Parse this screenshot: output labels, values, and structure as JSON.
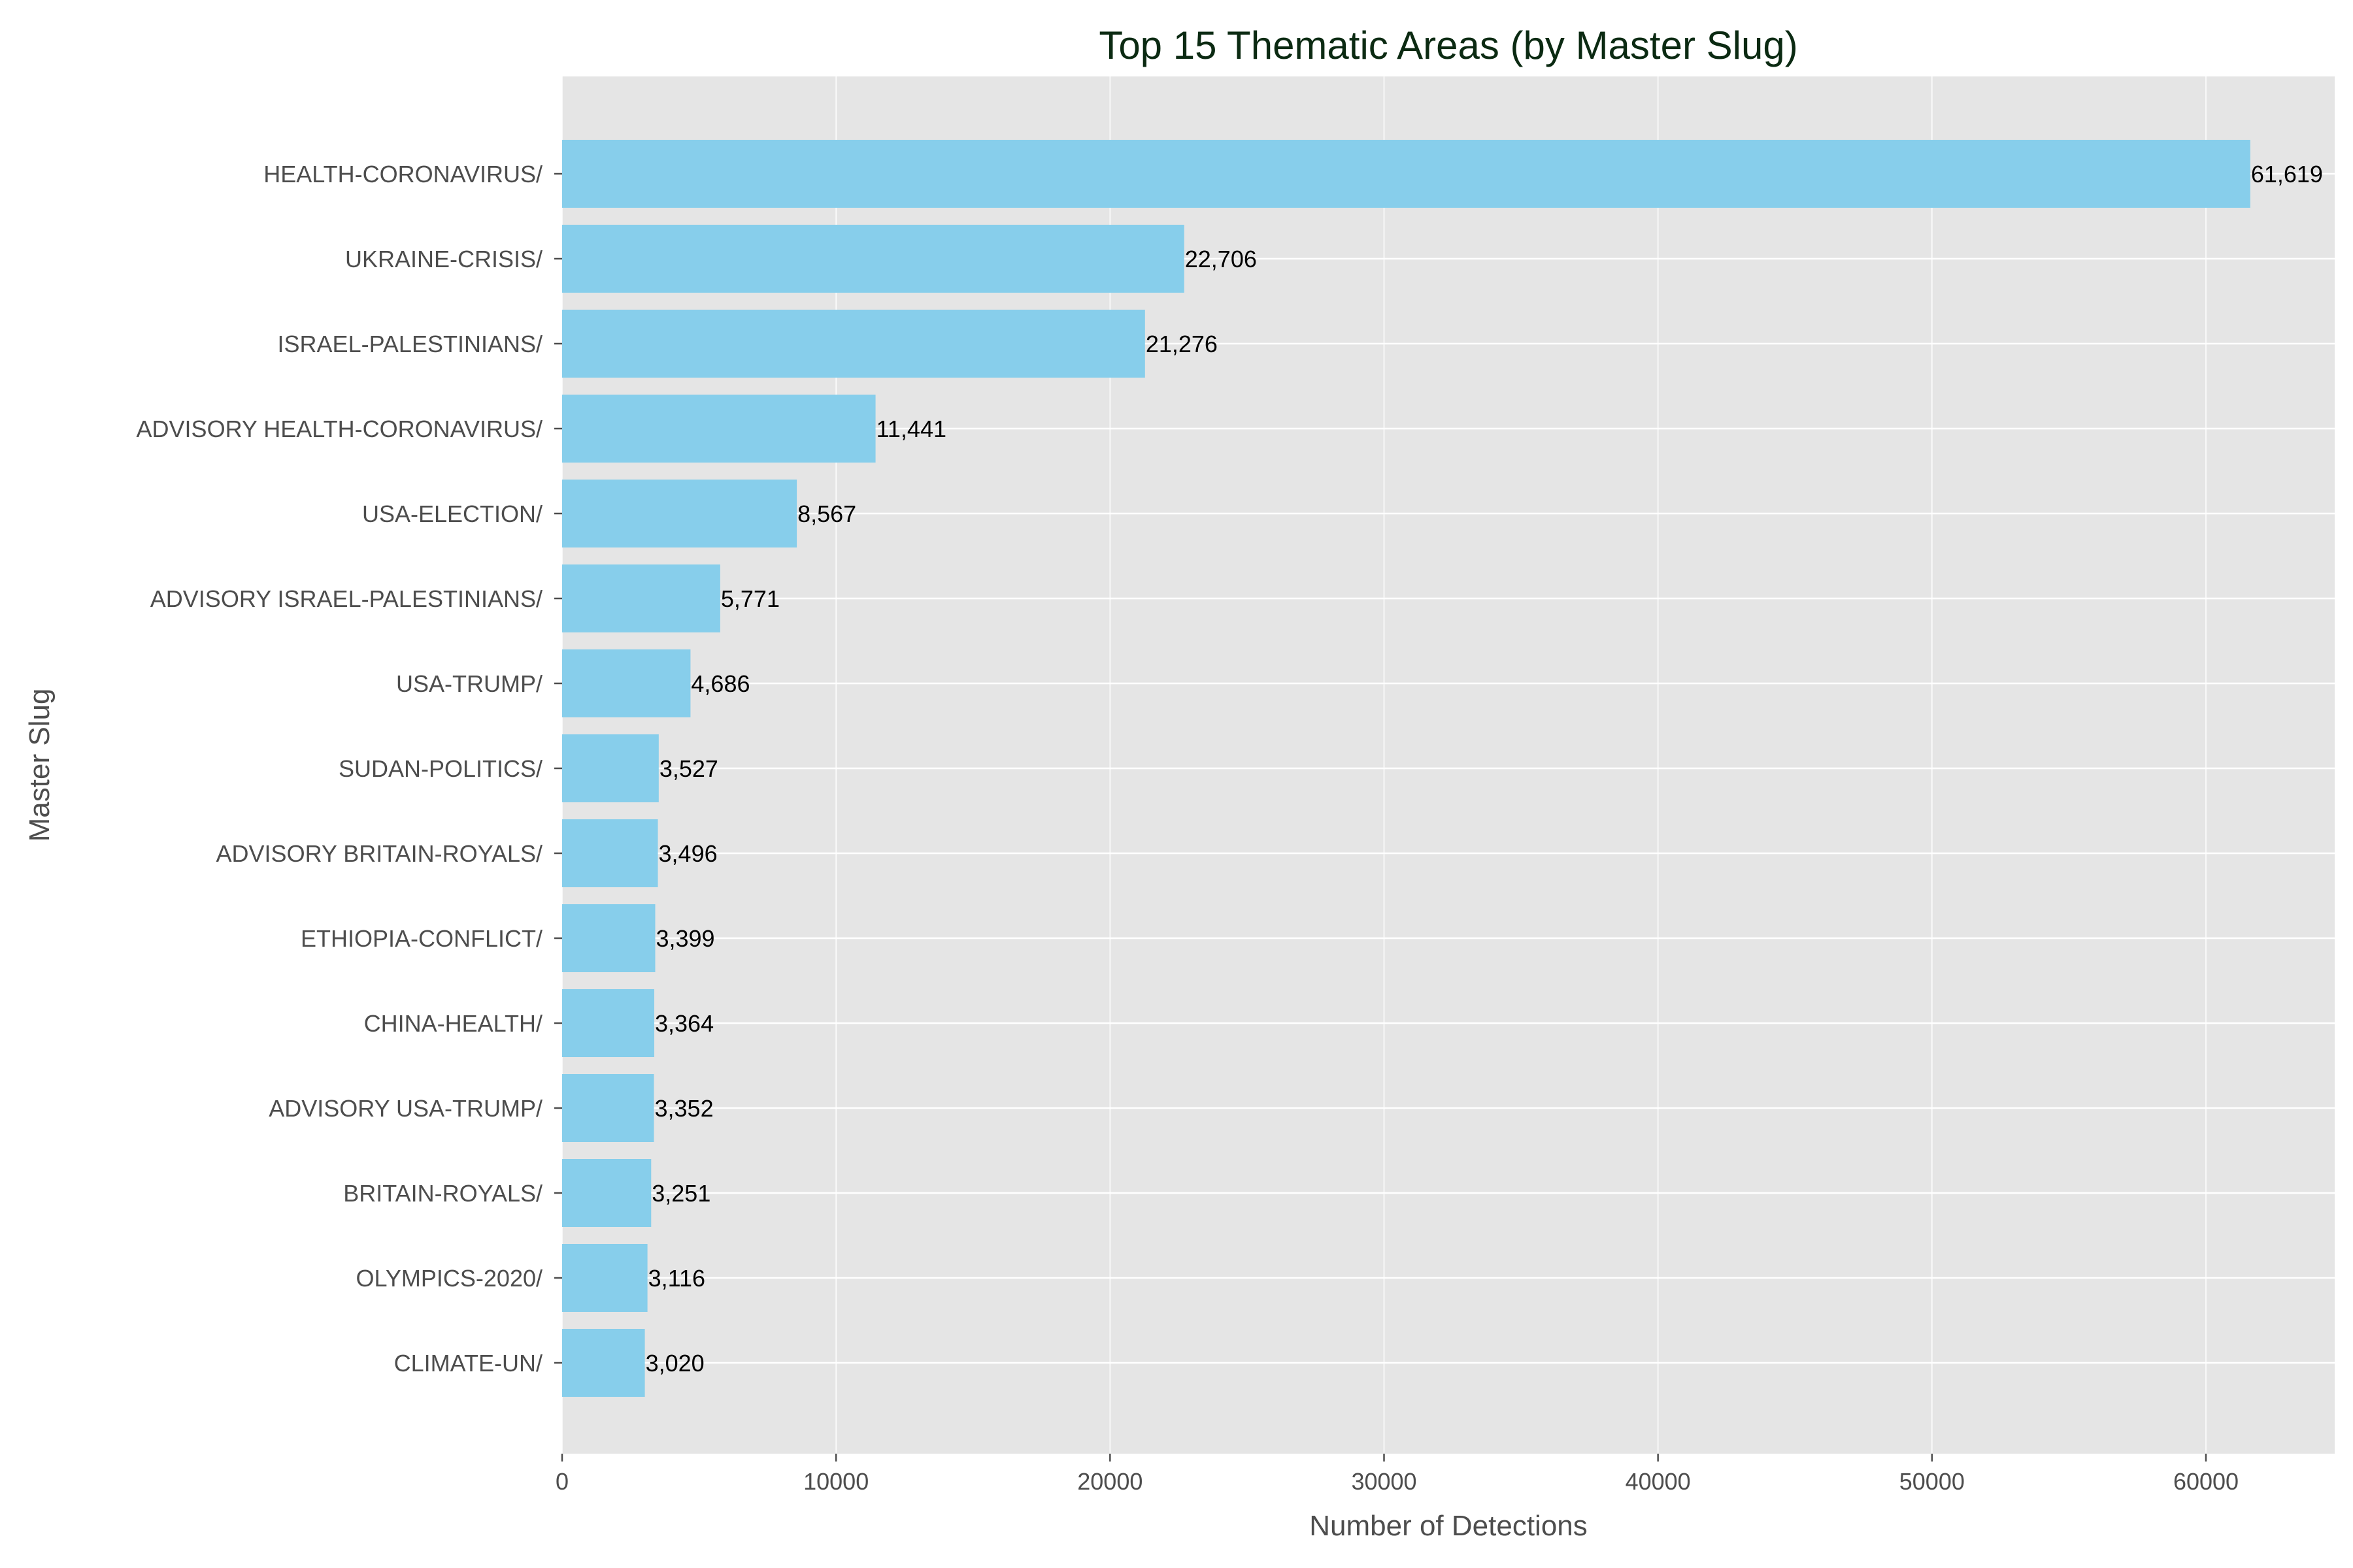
{
  "chart_data": {
    "type": "bar",
    "orientation": "horizontal",
    "title": "Top 15 Thematic Areas (by Master Slug)",
    "xlabel": "Number of Detections",
    "ylabel": "Master Slug",
    "xlim": [
      0,
      64700
    ],
    "xticks": [
      0,
      10000,
      20000,
      30000,
      40000,
      50000,
      60000
    ],
    "xtick_labels": [
      "0",
      "10000",
      "20000",
      "30000",
      "40000",
      "50000",
      "60000"
    ],
    "grid": true,
    "categories": [
      "HEALTH-CORONAVIRUS/",
      "UKRAINE-CRISIS/",
      "ISRAEL-PALESTINIANS/",
      "ADVISORY HEALTH-CORONAVIRUS/",
      "USA-ELECTION/",
      "ADVISORY ISRAEL-PALESTINIANS/",
      "USA-TRUMP/",
      "SUDAN-POLITICS/",
      "ADVISORY BRITAIN-ROYALS/",
      "ETHIOPIA-CONFLICT/",
      "CHINA-HEALTH/",
      "ADVISORY USA-TRUMP/",
      "BRITAIN-ROYALS/",
      "OLYMPICS-2020/",
      "CLIMATE-UN/"
    ],
    "values": [
      61619,
      22706,
      21276,
      11441,
      8567,
      5771,
      4686,
      3527,
      3496,
      3399,
      3364,
      3352,
      3251,
      3116,
      3020
    ],
    "value_labels": [
      "61,619",
      "22,706",
      "21,276",
      "11,441",
      "8,567",
      "5,771",
      "4,686",
      "3,527",
      "3,496",
      "3,399",
      "3,364",
      "3,352",
      "3,251",
      "3,116",
      "3,020"
    ],
    "colors": {
      "bar": "#87ceeb",
      "plot_background": "#e5e5e5",
      "grid": "#ffffff",
      "title": "#0b2a12",
      "axis_text": "#4d4d4d",
      "value_text": "#000000"
    }
  }
}
